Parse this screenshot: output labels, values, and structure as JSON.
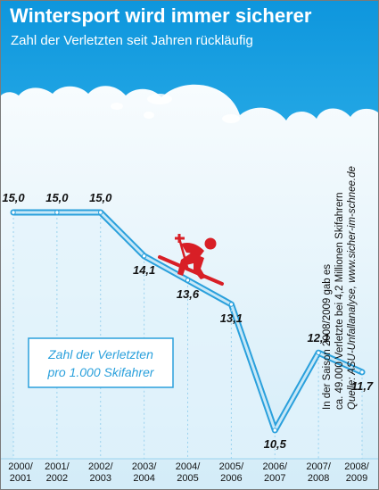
{
  "header": {
    "title": "Wintersport wird immer sicherer",
    "subtitle": "Zahl der Verletzten seit Jahren rückläufig"
  },
  "legend": {
    "line1": "Zahl der Verletzten",
    "line2": "pro 1.000 Skifahrer"
  },
  "note": {
    "line1": "In der Saison 2008/2009 gab es",
    "line2": "ca. 49.000 Verletzte bei 4,2 Millionen Skifahrern",
    "source": "Quelle: ASU-Unfallanalyse, www.sicher-im-schnee.de"
  },
  "chart_data": {
    "type": "line",
    "categories": [
      "2000/2001",
      "2001/2002",
      "2002/2003",
      "2003/2004",
      "2004/2005",
      "2005/2006",
      "2006/2007",
      "2007/2008",
      "2008/2009"
    ],
    "category_lines": [
      [
        "2000/",
        "2001"
      ],
      [
        "2001/",
        "2002"
      ],
      [
        "2002/",
        "2003"
      ],
      [
        "2003/",
        "2004"
      ],
      [
        "2004/",
        "2005"
      ],
      [
        "2005/",
        "2006"
      ],
      [
        "2006/",
        "2007"
      ],
      [
        "2007/",
        "2008"
      ],
      [
        "2008/",
        "2009"
      ]
    ],
    "series": [
      {
        "values": [
          15.0,
          15.0,
          15.0,
          14.1,
          13.6,
          13.1,
          10.5,
          12.1,
          11.7
        ]
      }
    ],
    "value_labels": [
      "15,0",
      "15,0",
      "15,0",
      "14,1",
      "13,6",
      "13,1",
      "10,5",
      "12,1",
      "11,7"
    ],
    "ylim": [
      10.0,
      16.5
    ],
    "grid": false,
    "colors": {
      "line": "#2aa0dc",
      "line_fill": "#c8e8f7",
      "header": "#1aa0e0",
      "skier": "#d81f26"
    },
    "icons": [
      "skier-icon"
    ]
  }
}
